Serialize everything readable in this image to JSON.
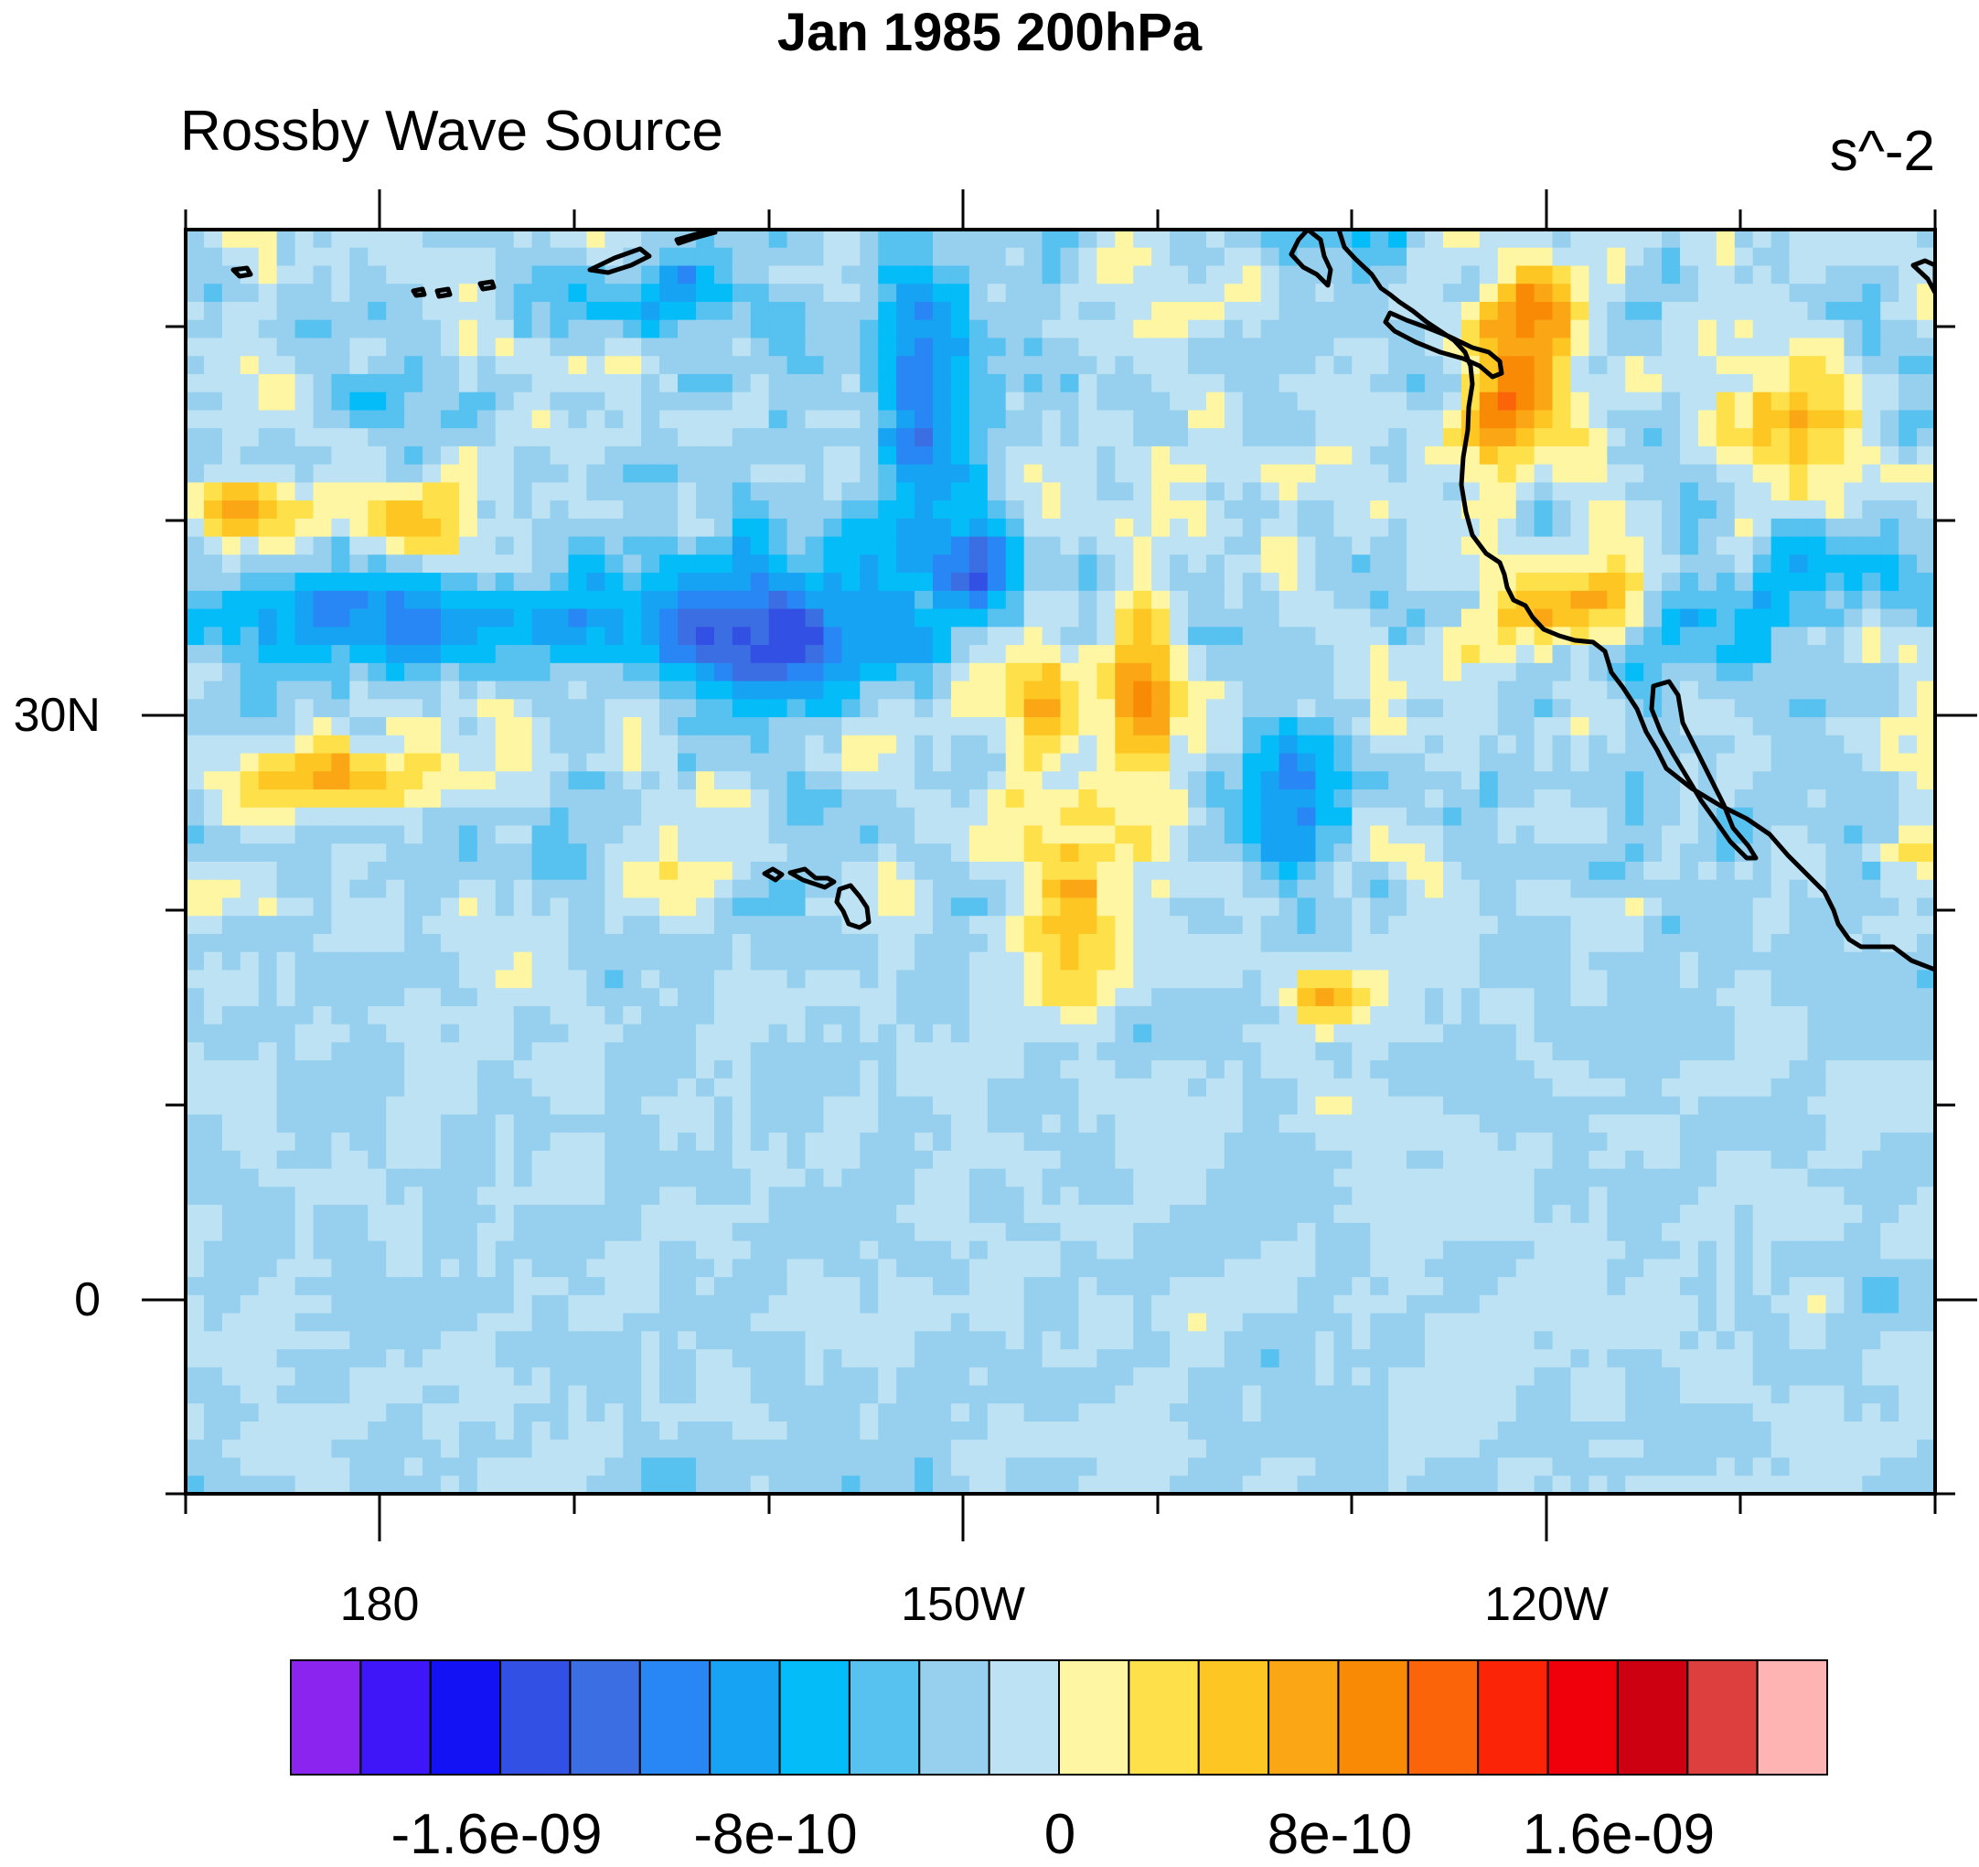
{
  "figure": {
    "title": "Jan 1985 200hPa",
    "left_title": "Rossby Wave Source",
    "right_title": "s^-2"
  },
  "axes": {
    "lat_labels": [
      "30N",
      "0"
    ],
    "lon_labels": [
      "180",
      "150W",
      "120W"
    ]
  },
  "colorbar": {
    "labels": [
      "-1.6e-09",
      "-8e-10",
      "0",
      "8e-10",
      "1.6e-09"
    ],
    "levels": [
      -1.8e-09,
      -1.6e-09,
      -1.4e-09,
      -1.2e-09,
      -1e-09,
      -8e-10,
      -6e-10,
      -4e-10,
      -2e-10,
      0,
      2e-10,
      4e-10,
      6e-10,
      8e-10,
      1e-09,
      1.2e-09,
      1.4e-09,
      1.6e-09,
      1.8e-09,
      2e-09
    ],
    "colors": [
      "#8b24ee",
      "#3f16f7",
      "#1212f5",
      "#3350e4",
      "#3b6ee2",
      "#2986f5",
      "#17a3f3",
      "#03bcf8",
      "#57c1f0",
      "#96d0ee",
      "#bde2f3",
      "#fef6a3",
      "#fee04a",
      "#fdc623",
      "#fba715",
      "#f98a06",
      "#fb6409",
      "#fc2406",
      "#ef000b",
      "#cc0010",
      "#dc3f3e",
      "#fdb4b2"
    ]
  },
  "map": {
    "projection": "cylindrical equidistant",
    "lon_range": [
      "170E",
      "100W"
    ],
    "lat_range": [
      "10S",
      "55N"
    ],
    "coastlines": true
  }
}
